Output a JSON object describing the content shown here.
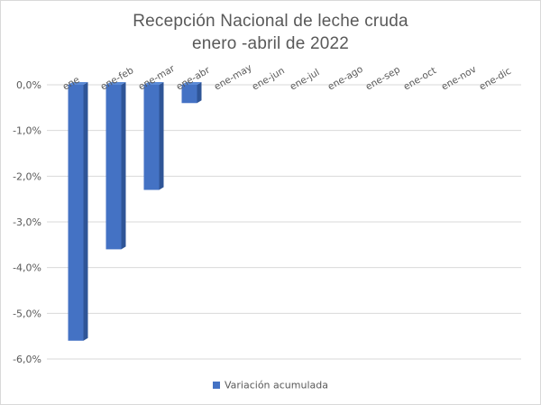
{
  "chart_data": {
    "type": "bar",
    "title": "Recepción Nacional de leche cruda",
    "subtitle": "enero -abril de 2022",
    "categories": [
      "ene",
      "ene-feb",
      "ene-mar",
      "ene-abr",
      "ene-may",
      "ene-jun",
      "ene-jul",
      "ene-ago",
      "ene-sep",
      "ene-oct",
      "ene-nov",
      "ene-dic"
    ],
    "series": [
      {
        "name": "Variación acumulada",
        "values": [
          -5.6,
          -3.6,
          -2.3,
          -0.4,
          null,
          null,
          null,
          null,
          null,
          null,
          null,
          null
        ],
        "color": "#4472c4"
      }
    ],
    "yticks": [
      "0,0%",
      "-1,0%",
      "-2,0%",
      "-3,0%",
      "-4,0%",
      "-5,0%",
      "-6,0%"
    ],
    "ylim": [
      -6,
      0
    ],
    "grid": true,
    "legend_position": "bottom"
  }
}
